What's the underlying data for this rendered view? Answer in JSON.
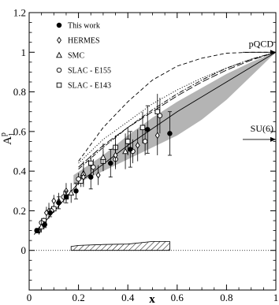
{
  "chart_data": {
    "type": "scatter",
    "title": "",
    "xlabel": "x",
    "ylabel": "A",
    "ylabel_sup": "p",
    "ylabel_sub": "1",
    "xlim": [
      0,
      1
    ],
    "ylim": [
      -0.2,
      1.2
    ],
    "x_ticks": [
      0,
      0.2,
      0.4,
      0.6,
      0.8,
      1
    ],
    "x_tick_labels": [
      "0",
      "0.2",
      "0.4",
      "0.6",
      "0.8",
      "1"
    ],
    "y_ticks": [
      0,
      0.2,
      0.4,
      0.6,
      0.8,
      1,
      1.2
    ],
    "y_tick_labels": [
      "0",
      "0.2",
      "0.4",
      "0.6",
      "0.8",
      "1",
      "1.2"
    ],
    "grid": false,
    "legend_position": "top-left",
    "series": [
      {
        "name": "This work",
        "marker": "filled-circle",
        "x": [
          0.033,
          0.063,
          0.085,
          0.12,
          0.15,
          0.19,
          0.25,
          0.33,
          0.41,
          0.48,
          0.57
        ],
        "y": [
          0.1,
          0.13,
          0.19,
          0.24,
          0.27,
          0.3,
          0.37,
          0.44,
          0.51,
          0.61,
          0.59
        ],
        "err": [
          0.01,
          0.015,
          0.02,
          0.03,
          0.03,
          0.04,
          0.06,
          0.07,
          0.09,
          0.12,
          0.11
        ]
      },
      {
        "name": "HERMES",
        "marker": "open-diamond",
        "x": [
          0.04,
          0.07,
          0.1,
          0.15,
          0.22,
          0.28,
          0.35,
          0.44,
          0.52
        ],
        "y": [
          0.1,
          0.19,
          0.25,
          0.3,
          0.37,
          0.38,
          0.48,
          0.53,
          0.58
        ],
        "err": [
          0.02,
          0.03,
          0.03,
          0.04,
          0.05,
          0.05,
          0.06,
          0.08,
          0.1
        ]
      },
      {
        "name": "SMC",
        "marker": "open-triangle",
        "x": [
          0.05,
          0.08,
          0.12,
          0.17,
          0.22,
          0.3,
          0.39
        ],
        "y": [
          0.12,
          0.2,
          0.25,
          0.29,
          0.39,
          0.47,
          0.5
        ],
        "err": [
          0.03,
          0.04,
          0.04,
          0.05,
          0.06,
          0.07,
          0.09
        ]
      },
      {
        "name": "SLAC - E155",
        "marker": "open-circle",
        "x": [
          0.031,
          0.05,
          0.09,
          0.14,
          0.2,
          0.26,
          0.35,
          0.42,
          0.47,
          0.53
        ],
        "y": [
          0.1,
          0.14,
          0.2,
          0.27,
          0.36,
          0.42,
          0.46,
          0.5,
          0.55,
          0.68
        ],
        "err": [
          0.01,
          0.02,
          0.02,
          0.03,
          0.03,
          0.04,
          0.05,
          0.06,
          0.07,
          0.09
        ]
      },
      {
        "name": "SLAC - E143",
        "marker": "open-square",
        "x": [
          0.035,
          0.06,
          0.1,
          0.15,
          0.21,
          0.25,
          0.3,
          0.35,
          0.4,
          0.46,
          0.52
        ],
        "y": [
          0.1,
          0.15,
          0.21,
          0.27,
          0.35,
          0.44,
          0.45,
          0.52,
          0.55,
          0.62,
          0.7
        ],
        "err": [
          0.01,
          0.015,
          0.02,
          0.025,
          0.03,
          0.04,
          0.05,
          0.06,
          0.07,
          0.08,
          0.09
        ]
      }
    ],
    "curves": [
      {
        "style": "solid",
        "x": [
          0.02,
          0.2,
          0.4,
          0.6,
          0.8,
          1.0
        ],
        "y": [
          0.08,
          0.34,
          0.53,
          0.7,
          0.85,
          1.0
        ]
      },
      {
        "style": "dashed",
        "x": [
          0.2,
          0.3,
          0.4,
          0.5,
          0.6,
          0.7,
          0.8,
          0.9,
          1.0
        ],
        "y": [
          0.45,
          0.62,
          0.75,
          0.86,
          0.93,
          0.97,
          0.995,
          1.0,
          1.0
        ]
      },
      {
        "style": "dotted",
        "x": [
          0.2,
          0.3,
          0.4,
          0.5,
          0.6,
          0.7,
          0.8,
          0.9,
          1.0
        ],
        "y": [
          0.44,
          0.56,
          0.65,
          0.74,
          0.81,
          0.87,
          0.92,
          0.965,
          1.0
        ]
      },
      {
        "style": "dashdot",
        "x": [
          0.2,
          0.3,
          0.4,
          0.5,
          0.6,
          0.7,
          0.8,
          0.9,
          1.0
        ],
        "y": [
          0.41,
          0.52,
          0.62,
          0.71,
          0.79,
          0.86,
          0.92,
          0.965,
          1.0
        ]
      },
      {
        "style": "longdash",
        "x": [
          0.2,
          0.3,
          0.4,
          0.5,
          0.6,
          0.7,
          0.8,
          0.9,
          1.0
        ],
        "y": [
          0.42,
          0.53,
          0.62,
          0.7,
          0.78,
          0.85,
          0.91,
          0.96,
          1.0
        ]
      }
    ],
    "band": {
      "x": [
        0.18,
        0.3,
        0.4,
        0.5,
        0.6,
        0.7,
        0.8,
        0.9,
        1.0
      ],
      "lower": [
        0.33,
        0.4,
        0.46,
        0.52,
        0.58,
        0.66,
        0.76,
        0.88,
        1.0
      ],
      "upper": [
        0.38,
        0.48,
        0.58,
        0.67,
        0.75,
        0.82,
        0.89,
        0.95,
        1.0
      ]
    },
    "systematic_band": {
      "x": [
        0.17,
        0.2,
        0.3,
        0.4,
        0.5,
        0.57
      ],
      "y": [
        0.02,
        0.025,
        0.03,
        0.032,
        0.045,
        0.045
      ]
    },
    "reference_line_y": 0,
    "annotations": [
      {
        "text": "pQCD",
        "x": 1.0,
        "y": 1.0
      },
      {
        "text": "SU(6)",
        "x": 1.0,
        "y": 0.56
      }
    ]
  }
}
